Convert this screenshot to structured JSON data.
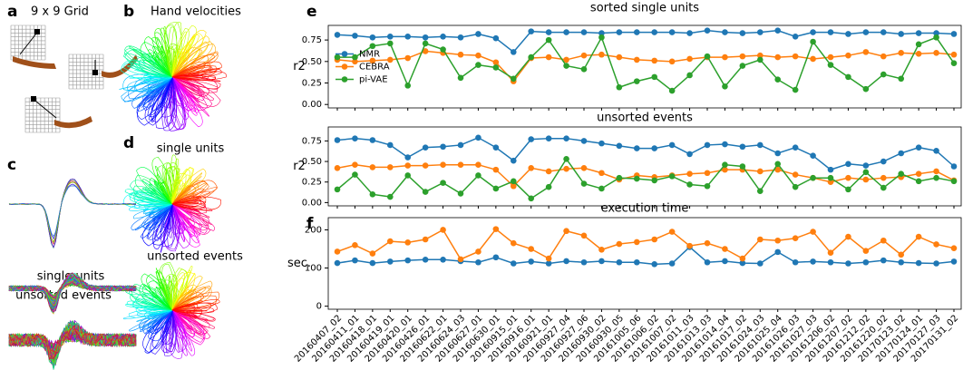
{
  "panels": {
    "a": {
      "label": "a",
      "title": "9 x 9 Grid"
    },
    "b": {
      "label": "b",
      "title": "Hand velocities"
    },
    "c": {
      "label": "c",
      "single": "single units",
      "unsorted": "unsorted events"
    },
    "d": {
      "label": "d",
      "single": "single units",
      "unsorted": "unsorted events"
    },
    "e": {
      "label": "e"
    },
    "f": {
      "label": "f"
    }
  },
  "chart_data": [
    {
      "type": "line",
      "title": "sorted single units",
      "ylabel": "r2",
      "ylim": [
        -0.04,
        0.92
      ],
      "yticks": [
        {
          "value": 0,
          "label": "0.00"
        },
        {
          "value": 0.25,
          "label": "0.25"
        },
        {
          "value": 0.5,
          "label": "0.50"
        },
        {
          "value": 0.75,
          "label": "0.75"
        }
      ],
      "legend": "center left",
      "grid": false,
      "series": [
        {
          "name": "NMR",
          "color": "#1f77b4",
          "values": [
            0.81,
            0.8,
            0.78,
            0.79,
            0.79,
            0.78,
            0.79,
            0.78,
            0.82,
            0.77,
            0.61,
            0.85,
            0.84,
            0.84,
            0.84,
            0.83,
            0.84,
            0.84,
            0.84,
            0.84,
            0.83,
            0.86,
            0.84,
            0.83,
            0.84,
            0.86,
            0.79,
            0.84,
            0.84,
            0.82,
            0.84,
            0.84,
            0.82,
            0.83,
            0.83,
            0.82
          ]
        },
        {
          "name": "CEBRA",
          "color": "#ff7f0e",
          "values": [
            0.52,
            0.5,
            0.51,
            0.52,
            0.54,
            0.62,
            0.6,
            0.58,
            0.57,
            0.49,
            0.27,
            0.54,
            0.55,
            0.52,
            0.57,
            0.58,
            0.55,
            0.52,
            0.51,
            0.5,
            0.53,
            0.55,
            0.55,
            0.56,
            0.57,
            0.55,
            0.56,
            0.53,
            0.55,
            0.57,
            0.61,
            0.56,
            0.6,
            0.59,
            0.6,
            0.58
          ]
        },
        {
          "name": "pi-VAE",
          "color": "#2ca02c",
          "values": [
            0.55,
            0.55,
            0.68,
            0.71,
            0.22,
            0.71,
            0.64,
            0.31,
            0.46,
            0.43,
            0.3,
            0.55,
            0.75,
            0.45,
            0.41,
            0.78,
            0.2,
            0.27,
            0.32,
            0.16,
            0.34,
            0.56,
            0.21,
            0.45,
            0.52,
            0.29,
            0.17,
            0.73,
            0.46,
            0.32,
            0.18,
            0.35,
            0.3,
            0.7,
            0.78,
            0.48
          ]
        }
      ]
    },
    {
      "type": "line",
      "title": "unsorted events",
      "ylabel": "r2",
      "ylim": [
        -0.04,
        0.92
      ],
      "yticks": [
        {
          "value": 0,
          "label": "0.00"
        },
        {
          "value": 0.25,
          "label": "0.25"
        },
        {
          "value": 0.5,
          "label": "0.50"
        },
        {
          "value": 0.75,
          "label": "0.75"
        }
      ],
      "grid": false,
      "series": [
        {
          "color": "#1f77b4",
          "values": [
            0.76,
            0.78,
            0.76,
            0.7,
            0.55,
            0.67,
            0.68,
            0.7,
            0.79,
            0.67,
            0.51,
            0.77,
            0.78,
            0.78,
            0.75,
            0.72,
            0.69,
            0.66,
            0.66,
            0.7,
            0.59,
            0.7,
            0.71,
            0.68,
            0.7,
            0.6,
            0.67,
            0.57,
            0.4,
            0.47,
            0.45,
            0.5,
            0.6,
            0.67,
            0.63,
            0.44
          ]
        },
        {
          "color": "#ff7f0e",
          "values": [
            0.42,
            0.46,
            0.43,
            0.43,
            0.45,
            0.45,
            0.46,
            0.46,
            0.46,
            0.4,
            0.2,
            0.42,
            0.38,
            0.41,
            0.42,
            0.36,
            0.28,
            0.33,
            0.31,
            0.33,
            0.35,
            0.36,
            0.4,
            0.4,
            0.38,
            0.4,
            0.34,
            0.3,
            0.25,
            0.3,
            0.28,
            0.3,
            0.31,
            0.35,
            0.38,
            0.27
          ]
        },
        {
          "color": "#2ca02c",
          "values": [
            0.16,
            0.34,
            0.1,
            0.07,
            0.33,
            0.13,
            0.24,
            0.11,
            0.33,
            0.17,
            0.26,
            0.05,
            0.19,
            0.53,
            0.23,
            0.17,
            0.3,
            0.29,
            0.27,
            0.32,
            0.22,
            0.2,
            0.46,
            0.44,
            0.14,
            0.47,
            0.19,
            0.3,
            0.3,
            0.16,
            0.37,
            0.18,
            0.35,
            0.26,
            0.3,
            0.26
          ]
        }
      ]
    },
    {
      "type": "line",
      "title": "execution time",
      "ylabel": "sec.",
      "ylim": [
        -8,
        232
      ],
      "yticks": [
        0,
        100,
        200
      ],
      "grid": false,
      "categories": [
        "20160407_02",
        "20160411_01",
        "20160418_01",
        "20160419_01",
        "20160420_01",
        "20160426_01",
        "20160622_01",
        "20160624_03",
        "20160627_01",
        "20160630_01",
        "20160915_01",
        "20160916_01",
        "20160921_01",
        "20160927_04",
        "20160927_06",
        "20160930_02",
        "20160930_05",
        "20161005_06",
        "20161006_02",
        "20161007_02",
        "20161011_03",
        "20161013_03",
        "20161014_04",
        "20161017_02",
        "20161024_03",
        "20161025_04",
        "20161026_03",
        "20161027_03",
        "20161206_02",
        "20161207_02",
        "20161212_02",
        "20161220_02",
        "20170123_02",
        "20170124_01",
        "20170127_03",
        "20170131_02"
      ],
      "series": [
        {
          "color": "#1f77b4",
          "values": [
            113,
            120,
            113,
            117,
            120,
            122,
            122,
            118,
            115,
            128,
            112,
            117,
            112,
            118,
            115,
            118,
            115,
            115,
            110,
            112,
            155,
            115,
            118,
            113,
            112,
            142,
            115,
            117,
            115,
            112,
            115,
            120,
            115,
            113,
            112,
            117
          ]
        },
        {
          "color": "#ff7f0e",
          "values": [
            143,
            160,
            138,
            170,
            167,
            175,
            200,
            123,
            143,
            202,
            165,
            150,
            125,
            197,
            185,
            148,
            163,
            168,
            175,
            195,
            158,
            165,
            150,
            125,
            175,
            172,
            178,
            195,
            140,
            182,
            145,
            172,
            135,
            182,
            162,
            152
          ]
        }
      ]
    }
  ]
}
